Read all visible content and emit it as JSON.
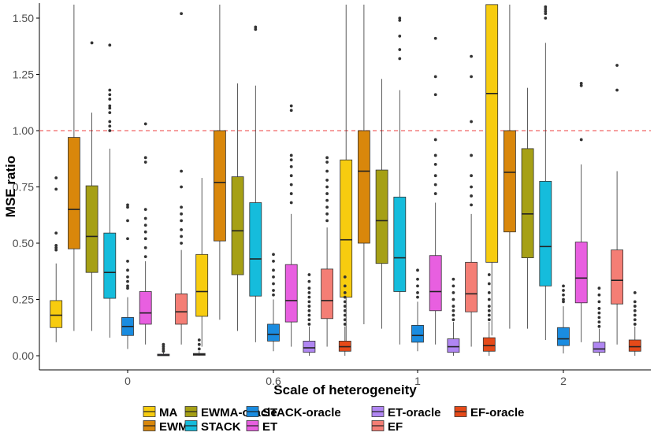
{
  "chart_data": {
    "type": "boxplot",
    "title": "",
    "xlabel": "Scale of heterogeneity",
    "ylabel": "MSE ratio",
    "ylim": [
      -0.04,
      1.56
    ],
    "yticks": [
      "0.00",
      "0.25",
      "0.50",
      "0.75",
      "1.00",
      "1.25",
      "1.50"
    ],
    "ytick_values": [
      0,
      0.25,
      0.5,
      0.75,
      1.0,
      1.25,
      1.5
    ],
    "categories": [
      "0",
      "0.6",
      "1",
      "2"
    ],
    "reference_line": {
      "y": 1.0,
      "style": "dashed",
      "color": "#f06666"
    },
    "legend": {
      "position": "bottom",
      "entries": [
        "MA",
        "EWMA",
        "EWMA-oracle",
        "STACK",
        "STACK-oracle",
        "ET",
        "ET-oracle",
        "EF",
        "EF-oracle"
      ]
    },
    "series": [
      {
        "name": "MA",
        "color": "#f7cc0f",
        "boxes": [
          {
            "q1": 0.125,
            "median": 0.18,
            "q3": 0.245,
            "low": 0.06,
            "high": 0.41,
            "outliers": [
              0.47,
              0.48,
              0.49,
              0.545,
              0.74,
              0.79
            ]
          },
          {
            "q1": 0.175,
            "median": 0.285,
            "q3": 0.45,
            "low": 0.04,
            "high": 0.79,
            "outliers": []
          },
          {
            "q1": 0.26,
            "median": 0.515,
            "q3": 0.87,
            "low": 0.05,
            "high": 1.56,
            "outliers": []
          },
          {
            "q1": 0.415,
            "median": 1.165,
            "q3": 1.56,
            "low": 0.09,
            "high": 1.56,
            "outliers": []
          }
        ]
      },
      {
        "name": "EWMA",
        "color": "#d9870b",
        "boxes": [
          {
            "q1": 0.475,
            "median": 0.65,
            "q3": 0.97,
            "low": 0.11,
            "high": 1.56,
            "outliers": []
          },
          {
            "q1": 0.51,
            "median": 0.77,
            "q3": 1.0,
            "low": 0.16,
            "high": 1.56,
            "outliers": []
          },
          {
            "q1": 0.5,
            "median": 0.82,
            "q3": 1.0,
            "low": 0.14,
            "high": 1.56,
            "outliers": []
          },
          {
            "q1": 0.55,
            "median": 0.815,
            "q3": 1.0,
            "low": 0.12,
            "high": 1.56,
            "outliers": []
          }
        ]
      },
      {
        "name": "EWMA-oracle",
        "color": "#a6a015",
        "boxes": [
          {
            "q1": 0.37,
            "median": 0.53,
            "q3": 0.755,
            "low": 0.11,
            "high": 1.08,
            "outliers": [
              1.39
            ]
          },
          {
            "q1": 0.36,
            "median": 0.555,
            "q3": 0.795,
            "low": 0.11,
            "high": 1.21,
            "outliers": []
          },
          {
            "q1": 0.41,
            "median": 0.6,
            "q3": 0.825,
            "low": 0.12,
            "high": 1.23,
            "outliers": []
          },
          {
            "q1": 0.435,
            "median": 0.63,
            "q3": 0.92,
            "low": 0.12,
            "high": 1.19,
            "outliers": []
          }
        ]
      },
      {
        "name": "STACK",
        "color": "#15bcdc",
        "boxes": [
          {
            "q1": 0.255,
            "median": 0.37,
            "q3": 0.545,
            "low": 0.08,
            "high": 0.92,
            "outliers": [
              1.0,
              1.02,
              1.04,
              1.08,
              1.1,
              1.11,
              1.14,
              1.16,
              1.18,
              1.38
            ]
          },
          {
            "q1": 0.265,
            "median": 0.43,
            "q3": 0.68,
            "low": 0.06,
            "high": 1.2,
            "outliers": [
              1.45,
              1.46
            ]
          },
          {
            "q1": 0.285,
            "median": 0.435,
            "q3": 0.705,
            "low": 0.05,
            "high": 1.18,
            "outliers": [
              1.32,
              1.36,
              1.42,
              1.49,
              1.5
            ]
          },
          {
            "q1": 0.31,
            "median": 0.485,
            "q3": 0.775,
            "low": 0.07,
            "high": 1.39,
            "outliers": [
              1.5,
              1.52,
              1.53,
              1.54,
              1.55
            ]
          }
        ]
      },
      {
        "name": "STACK-oracle",
        "color": "#1a8ce0",
        "boxes": [
          {
            "q1": 0.09,
            "median": 0.13,
            "q3": 0.17,
            "low": 0.03,
            "high": 0.26,
            "outliers": [
              0.3,
              0.31,
              0.33,
              0.35,
              0.38,
              0.42,
              0.52,
              0.6,
              0.66,
              0.67
            ]
          },
          {
            "q1": 0.065,
            "median": 0.095,
            "q3": 0.14,
            "low": 0.02,
            "high": 0.25,
            "outliers": [
              0.27,
              0.29,
              0.32,
              0.35,
              0.38,
              0.42,
              0.45
            ]
          },
          {
            "q1": 0.06,
            "median": 0.09,
            "q3": 0.135,
            "low": 0.02,
            "high": 0.24,
            "outliers": [
              0.26,
              0.28,
              0.31,
              0.34,
              0.38
            ]
          },
          {
            "q1": 0.045,
            "median": 0.075,
            "q3": 0.125,
            "low": 0.01,
            "high": 0.22,
            "outliers": [
              0.24,
              0.25,
              0.27,
              0.29,
              0.31
            ]
          }
        ]
      },
      {
        "name": "ET",
        "color": "#e85fe0",
        "boxes": [
          {
            "q1": 0.14,
            "median": 0.19,
            "q3": 0.285,
            "low": 0.05,
            "high": 0.42,
            "outliers": [
              0.44,
              0.48,
              0.52,
              0.55,
              0.58,
              0.61,
              0.65,
              0.86,
              0.88,
              1.03
            ]
          },
          {
            "q1": 0.15,
            "median": 0.245,
            "q3": 0.405,
            "low": 0.04,
            "high": 0.63,
            "outliers": [
              0.68,
              0.72,
              0.76,
              0.8,
              0.84,
              0.87,
              0.89,
              1.09,
              1.11
            ]
          },
          {
            "q1": 0.2,
            "median": 0.285,
            "q3": 0.445,
            "low": 0.05,
            "high": 0.68,
            "outliers": [
              0.72,
              0.76,
              0.8,
              0.85,
              0.89,
              0.96,
              1.16,
              1.24,
              1.41
            ]
          },
          {
            "q1": 0.235,
            "median": 0.345,
            "q3": 0.505,
            "low": 0.06,
            "high": 0.85,
            "outliers": [
              0.96,
              1.2,
              1.21
            ]
          }
        ]
      },
      {
        "name": "ET-oracle",
        "color": "#b086f2",
        "boxes": [
          {
            "q1": 0.0,
            "median": 0.003,
            "q3": 0.007,
            "low": 0.0,
            "high": 0.015,
            "outliers": [
              0.02,
              0.03,
              0.04,
              0.05
            ]
          },
          {
            "q1": 0.015,
            "median": 0.035,
            "q3": 0.065,
            "low": 0.0,
            "high": 0.13,
            "outliers": [
              0.14,
              0.16,
              0.18,
              0.2,
              0.22,
              0.24,
              0.26,
              0.28,
              0.3,
              0.33,
              0.36
            ]
          },
          {
            "q1": 0.015,
            "median": 0.04,
            "q3": 0.075,
            "low": 0.0,
            "high": 0.15,
            "outliers": [
              0.16,
              0.18,
              0.2,
              0.22,
              0.25,
              0.28,
              0.31,
              0.34
            ]
          },
          {
            "q1": 0.015,
            "median": 0.03,
            "q3": 0.06,
            "low": 0.0,
            "high": 0.12,
            "outliers": [
              0.13,
              0.15,
              0.17,
              0.19,
              0.21,
              0.24,
              0.27,
              0.3
            ]
          }
        ]
      },
      {
        "name": "EF",
        "color": "#f47e75",
        "boxes": [
          {
            "q1": 0.14,
            "median": 0.195,
            "q3": 0.275,
            "low": 0.05,
            "high": 0.47,
            "outliers": [
              0.5,
              0.53,
              0.56,
              0.6,
              0.63,
              0.66,
              0.75,
              0.82,
              1.52
            ]
          },
          {
            "q1": 0.165,
            "median": 0.245,
            "q3": 0.385,
            "low": 0.04,
            "high": 0.57,
            "outliers": [
              0.6,
              0.63,
              0.66,
              0.69,
              0.72,
              0.75,
              0.78,
              0.82,
              0.86,
              0.88
            ]
          },
          {
            "q1": 0.195,
            "median": 0.275,
            "q3": 0.415,
            "low": 0.04,
            "high": 0.63,
            "outliers": [
              0.67,
              0.71,
              0.75,
              0.8,
              0.89,
              1.04,
              1.24,
              1.33
            ]
          },
          {
            "q1": 0.23,
            "median": 0.335,
            "q3": 0.47,
            "low": 0.05,
            "high": 0.82,
            "outliers": [
              1.18,
              1.29
            ]
          }
        ]
      },
      {
        "name": "EF-oracle",
        "color": "#e64a19",
        "boxes": [
          {
            "q1": 0.002,
            "median": 0.006,
            "q3": 0.01,
            "low": 0.0,
            "high": 0.02,
            "outliers": [
              0.03,
              0.05,
              0.07
            ]
          },
          {
            "q1": 0.02,
            "median": 0.04,
            "q3": 0.065,
            "low": 0.0,
            "high": 0.13,
            "outliers": [
              0.14,
              0.16,
              0.18,
              0.2,
              0.22,
              0.24,
              0.26,
              0.28,
              0.31,
              0.35
            ]
          },
          {
            "q1": 0.02,
            "median": 0.045,
            "q3": 0.08,
            "low": 0.0,
            "high": 0.15,
            "outliers": [
              0.16,
              0.18,
              0.2,
              0.22,
              0.25,
              0.28,
              0.32,
              0.36
            ]
          },
          {
            "q1": 0.02,
            "median": 0.04,
            "q3": 0.07,
            "low": 0.0,
            "high": 0.13,
            "outliers": [
              0.14,
              0.16,
              0.18,
              0.2,
              0.22,
              0.24,
              0.28
            ]
          }
        ]
      }
    ]
  }
}
